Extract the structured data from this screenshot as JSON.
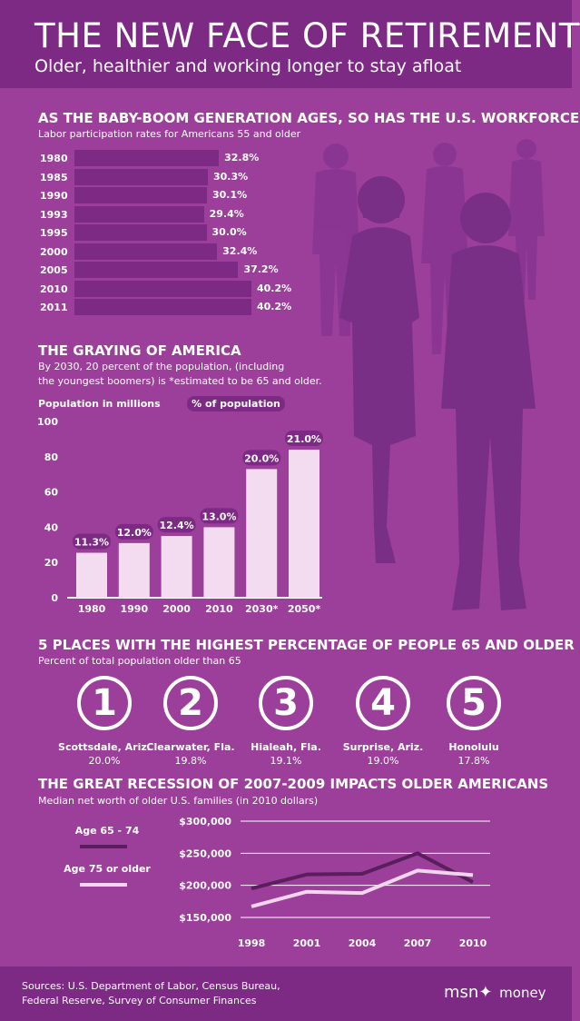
{
  "header": {
    "title": "THE NEW FACE OF RETIREMENT",
    "subtitle": "Older, healthier and working longer to stay afloat"
  },
  "labor": {
    "title": "AS THE BABY-BOOM GENERATION AGES, SO HAS THE U.S. WORKFORCE",
    "subtitle": "Labor participation rates for Americans 55 and older",
    "rows": [
      {
        "year": "1980",
        "label": "32.8%",
        "value": 32.8
      },
      {
        "year": "1985",
        "label": "30.3%",
        "value": 30.3
      },
      {
        "year": "1990",
        "label": "30.1%",
        "value": 30.1
      },
      {
        "year": "1993",
        "label": "29.4%",
        "value": 29.4
      },
      {
        "year": "1995",
        "label": "30.0%",
        "value": 30.0
      },
      {
        "year": "2000",
        "label": "32.4%",
        "value": 32.4
      },
      {
        "year": "2005",
        "label": "37.2%",
        "value": 37.2
      },
      {
        "year": "2010",
        "label": "40.2%",
        "value": 40.2
      },
      {
        "year": "2011",
        "label": "40.2%",
        "value": 40.2
      }
    ]
  },
  "graying": {
    "title": "THE GRAYING OF AMERICA",
    "subtitle_1": "By 2030, 20 percent of the population, (including",
    "subtitle_2": "the youngest boomers) is *estimated to be 65 and older.",
    "y_label": "Population in millions",
    "pct_label": "% of population"
  },
  "places": {
    "title": "5 PLACES WITH THE HIGHEST PERCENTAGE OF PEOPLE 65 AND OLDER",
    "subtitle": "Percent of total population older than 65",
    "items": [
      {
        "rank": "1",
        "name": "Scottsdale, Ariz.",
        "value": "20.0%"
      },
      {
        "rank": "2",
        "name": "Clearwater, Fla.",
        "value": "19.8%"
      },
      {
        "rank": "3",
        "name": "Hialeah, Fla.",
        "value": "19.1%"
      },
      {
        "rank": "4",
        "name": "Surprise, Ariz.",
        "value": "19.0%"
      },
      {
        "rank": "5",
        "name": "Honolulu",
        "value": "17.8%"
      }
    ]
  },
  "recession": {
    "title": "THE GREAT RECESSION OF 2007-2009 IMPACTS OLDER AMERICANS",
    "subtitle": "Median net worth of older U.S. families (in 2010 dollars)"
  },
  "chart_data": [
    {
      "type": "bar",
      "categories": [
        "1980",
        "1985",
        "1990",
        "1993",
        "1995",
        "2000",
        "2005",
        "2010",
        "2011"
      ],
      "values": [
        32.8,
        30.3,
        30.1,
        29.4,
        30.0,
        32.4,
        37.2,
        40.2,
        40.2
      ],
      "data_labels": [
        "32.8%",
        "30.3%",
        "30.1%",
        "29.4%",
        "30.0%",
        "32.4%",
        "37.2%",
        "40.2%",
        "40.2%"
      ],
      "orientation": "horizontal"
    },
    {
      "type": "bar",
      "categories": [
        "1980",
        "1990",
        "2000",
        "2010",
        "2030*",
        "2050*"
      ],
      "values": [
        25.5,
        31,
        35,
        40,
        73,
        84
      ],
      "data_labels": [
        "11.3%",
        "12.0%",
        "12.4%",
        "13.0%",
        "20.0%",
        "21.0%"
      ],
      "ylabel": "Population in millions",
      "ylim": [
        0,
        100
      ],
      "yticks": [
        "0",
        "20",
        "40",
        "60",
        "80",
        "100"
      ],
      "grid": false
    },
    {
      "type": "line",
      "x": [
        "1998",
        "2001",
        "2004",
        "2007",
        "2010"
      ],
      "series": [
        {
          "name": "Age 65 - 74",
          "values": [
            195000,
            217000,
            218000,
            250000,
            205000
          ],
          "color": "#5a1e5e"
        },
        {
          "name": "Age 75 or older",
          "values": [
            167000,
            190000,
            188000,
            223000,
            216000
          ],
          "color": "#f3d6ee"
        }
      ],
      "ylim": [
        150000,
        300000
      ],
      "yticks": [
        "$150,000",
        "$200,000",
        "$250,000",
        "$300,000"
      ],
      "grid": true,
      "legend": "left"
    }
  ],
  "footer": {
    "sources_1": "Sources: U.S. Department of Labor, Census Bureau,",
    "sources_2": "Federal Reserve, Survey of Consumer Finances",
    "logo_msn": "msn",
    "logo_money": "money"
  },
  "colors": {
    "background": "#9c3f9a",
    "dark": "#7d2a85",
    "bar_light": "#f3dcef",
    "silhouette": "#7a2f86"
  }
}
